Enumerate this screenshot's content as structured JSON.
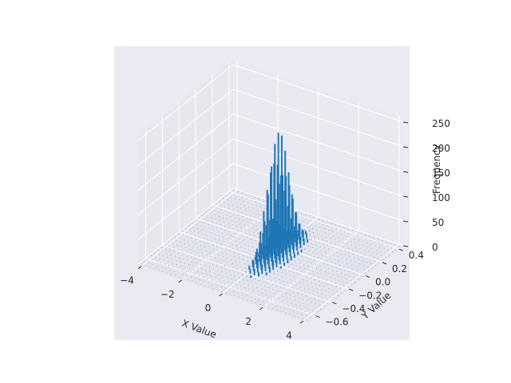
{
  "chart_data": {
    "type": "bar3d",
    "title": "",
    "xlabel": "X Value",
    "ylabel": "Y Value",
    "zlabel": "Frequency",
    "xlim": [
      -4.2,
      4.2
    ],
    "ylim": [
      -0.7,
      0.45
    ],
    "zlim": [
      0,
      260
    ],
    "x_ticks": [
      -4,
      -2,
      0,
      2,
      4
    ],
    "y_ticks": [
      -0.6,
      -0.4,
      -0.2,
      0.0,
      0.2,
      0.4
    ],
    "z_ticks": [
      0,
      50,
      100,
      150,
      200,
      250
    ],
    "x_tick_labels": [
      "−4",
      "−2",
      "0",
      "2",
      "4"
    ],
    "y_tick_labels": [
      "−0.6",
      "−0.4",
      "−0.2",
      "0.0",
      "0.2",
      "0.4"
    ],
    "z_tick_labels": [
      "0",
      "50",
      "100",
      "150",
      "200",
      "250"
    ],
    "distribution": {
      "x_mean": 0.3,
      "x_std": 0.25,
      "y_mean": -0.1,
      "y_std": 0.12,
      "peak": 250
    },
    "grid": true,
    "bar_color": "#1f77b4",
    "pane_color": "#eaeaf2",
    "grid_color": "#ffffff"
  }
}
